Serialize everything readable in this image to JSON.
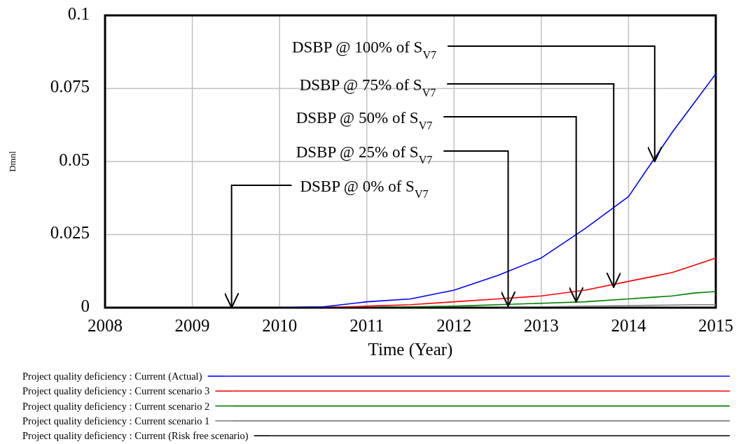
{
  "chart_data": {
    "type": "line",
    "xlabel": "Time (Year)",
    "ylabel": "Dmnl",
    "x": [
      2008,
      2009,
      2010,
      2010.5,
      2011,
      2011.5,
      2012,
      2012.5,
      2013,
      2013.5,
      2014,
      2014.25,
      2014.5,
      2014.75,
      2015
    ],
    "series": [
      {
        "name": "Project quality deficiency : Current (Actual)",
        "color": "#0000ff",
        "values": [
          null,
          null,
          0,
          0.0003,
          0.002,
          0.003,
          0.006,
          0.011,
          0.017,
          0.027,
          0.038,
          0.049,
          0.06,
          0.07,
          0.08
        ]
      },
      {
        "name": "Project quality deficiency : Current scenario 3",
        "color": "#ff0000",
        "values": [
          null,
          null,
          null,
          0,
          0.0005,
          0.001,
          0.002,
          0.003,
          0.004,
          0.006,
          0.009,
          0.0105,
          0.012,
          0.0145,
          0.017
        ]
      },
      {
        "name": "Project quality deficiency : Current scenario 2",
        "color": "#008000",
        "values": [
          null,
          null,
          null,
          null,
          0,
          0.0003,
          0.0005,
          0.001,
          0.0015,
          0.002,
          0.003,
          0.0035,
          0.004,
          0.005,
          0.0055
        ]
      },
      {
        "name": "Project quality deficiency : Current scenario 1",
        "color": "#808080",
        "values": [
          null,
          null,
          null,
          null,
          null,
          null,
          null,
          0,
          0.0003,
          0.0005,
          0.0007,
          0.0008,
          0.0009,
          0.001,
          0.001
        ]
      },
      {
        "name": "Project quality deficiency : Current (Risk free scenario)",
        "color": "#000000",
        "values": [
          0,
          0,
          0,
          0,
          0,
          0,
          0,
          0,
          0,
          0,
          0,
          0,
          0,
          0,
          0
        ]
      }
    ],
    "xlim": [
      2008,
      2015
    ],
    "xticks": [
      2008,
      2009,
      2010,
      2011,
      2012,
      2013,
      2014,
      2015
    ],
    "ylim": [
      0,
      0.1
    ],
    "yticks": [
      0,
      0.025,
      0.05,
      0.075,
      0.1
    ],
    "grid": true,
    "legend": "bottom",
    "annotations": [
      {
        "text": "DSBP @ 100% of S$_{V7}$",
        "x": 2014.3,
        "y": 0.05
      },
      {
        "text": "DSBP @ 75% of S$_{V7}$",
        "x": 2013.83,
        "y": 0.007
      },
      {
        "text": "DSBP @ 50% of S$_{V7}$",
        "x": 2013.4,
        "y": 0.002
      },
      {
        "text": "DSBP @ 25% of S$_{V7}$",
        "x": 2012.62,
        "y": 0.0005
      },
      {
        "text": "DSBP @ 0% of S$_{V7}$",
        "x": 2009.45,
        "y": 0
      }
    ]
  }
}
